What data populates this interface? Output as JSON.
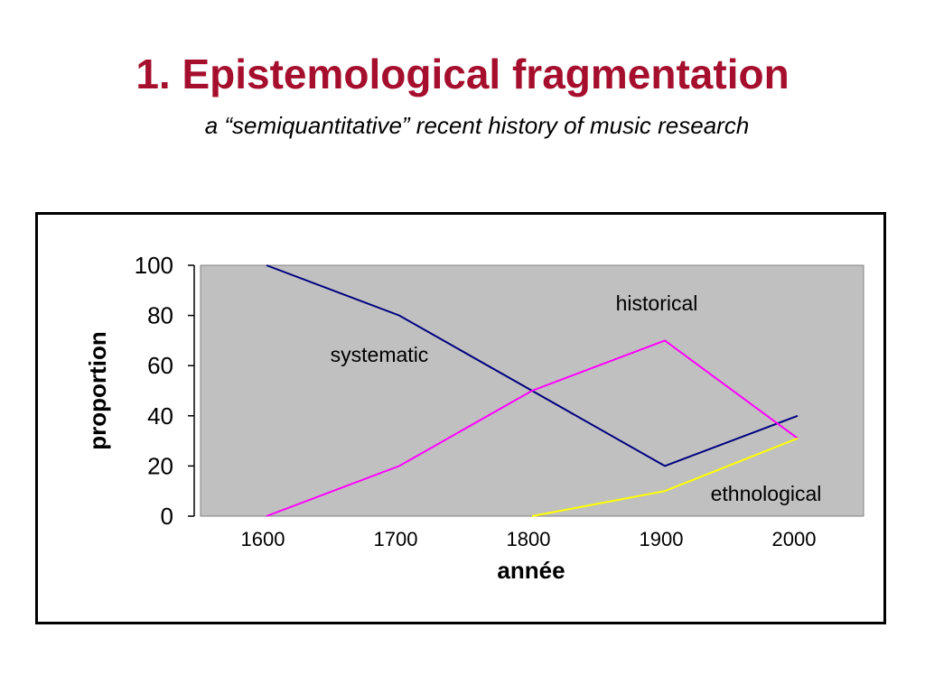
{
  "slide": {
    "title": "1. Epistemological fragmentation",
    "subtitle": "a “semiquantitative” recent history of music research"
  },
  "chart_data": {
    "type": "line",
    "title": "",
    "xlabel": "année",
    "ylabel": "proportion",
    "categories": [
      "1600",
      "1700",
      "1800",
      "1900",
      "2000"
    ],
    "yticks": [
      0,
      20,
      40,
      60,
      80,
      100
    ],
    "ylim": [
      0,
      100
    ],
    "grid": false,
    "legend": "none",
    "plot_background": "#c0c0c0",
    "series": [
      {
        "name": "systematic",
        "color": "#000080",
        "values": [
          100,
          80,
          50,
          20,
          40
        ]
      },
      {
        "name": "historical",
        "color": "#ff00ff",
        "values": [
          0,
          20,
          50,
          70,
          31
        ]
      },
      {
        "name": "ethnological",
        "color": "#ffff00",
        "values": [
          null,
          null,
          0,
          10,
          31
        ]
      }
    ]
  }
}
